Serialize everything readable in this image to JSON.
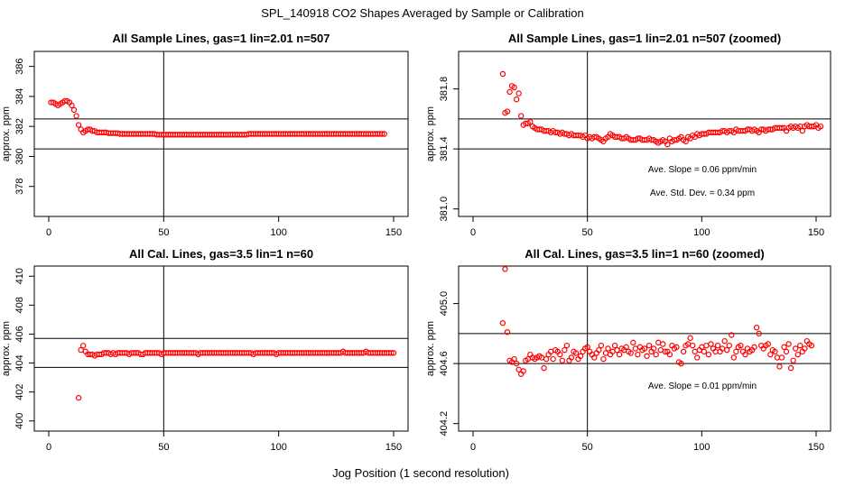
{
  "figure": {
    "title": "SPL_140918  CO2 Shapes Averaged by Sample or Calibration",
    "xlabel": "Jog Position (1 second resolution)"
  },
  "colors": {
    "points": "#ff0000",
    "lines": "#000000"
  },
  "chart_data": [
    {
      "type": "scatter",
      "title": "All Sample Lines, gas=1 lin=2.01 n=507",
      "ylabel": "approx. ppm",
      "xlim": [
        0,
        150
      ],
      "ylim": [
        376,
        387
      ],
      "xticks": [
        0,
        50,
        100,
        150
      ],
      "yticks": [
        378,
        380,
        382,
        384,
        386
      ],
      "hlines": [
        382.5,
        380.5
      ],
      "vline": 50,
      "annotations": [],
      "x_start": 1,
      "y": [
        383.6,
        383.6,
        383.5,
        383.4,
        383.5,
        383.6,
        383.7,
        383.7,
        383.6,
        383.4,
        383.1,
        382.7,
        382.1,
        381.8,
        381.6,
        381.7,
        381.8,
        381.8,
        381.7,
        381.7,
        381.6,
        381.6,
        381.6,
        381.6,
        381.6,
        381.55,
        381.55,
        381.55,
        381.55,
        381.55,
        381.5,
        381.5,
        381.5,
        381.5,
        381.5,
        381.5,
        381.5,
        381.5,
        381.5,
        381.5,
        381.5,
        381.5,
        381.5,
        381.5,
        381.5,
        381.5,
        381.45,
        381.45,
        381.45,
        381.45,
        381.45,
        381.45,
        381.45,
        381.45,
        381.45,
        381.45,
        381.45,
        381.45,
        381.45,
        381.45,
        381.45,
        381.45,
        381.45,
        381.45,
        381.45,
        381.45,
        381.45,
        381.45,
        381.45,
        381.45,
        381.45,
        381.45,
        381.45,
        381.45,
        381.45,
        381.45,
        381.45,
        381.45,
        381.45,
        381.45,
        381.45,
        381.45,
        381.45,
        381.45,
        381.45,
        381.45,
        381.5,
        381.5,
        381.5,
        381.5,
        381.5,
        381.5,
        381.5,
        381.5,
        381.5,
        381.5,
        381.5,
        381.5,
        381.5,
        381.5,
        381.5,
        381.5,
        381.5,
        381.5,
        381.5,
        381.5,
        381.5,
        381.5,
        381.5,
        381.5,
        381.5,
        381.5,
        381.5,
        381.5,
        381.5,
        381.5,
        381.5,
        381.5,
        381.5,
        381.5,
        381.5,
        381.5,
        381.5,
        381.5,
        381.5,
        381.5,
        381.5,
        381.5,
        381.5,
        381.5,
        381.5,
        381.5,
        381.5,
        381.5,
        381.5,
        381.5,
        381.5,
        381.5,
        381.5,
        381.5,
        381.5,
        381.5,
        381.5,
        381.5,
        381.5,
        381.5
      ]
    },
    {
      "type": "scatter",
      "title": "All Sample Lines, gas=1 lin=2.01 n=507 (zoomed)",
      "ylabel": "approx. ppm",
      "xlim": [
        0,
        150
      ],
      "ylim": [
        380.95,
        382.05
      ],
      "xticks": [
        0,
        50,
        100,
        150
      ],
      "yticks": [
        381.0,
        381.4,
        381.8
      ],
      "hlines": [
        381.6,
        381.4
      ],
      "vline": 50,
      "annotations": [
        "Ave. Slope =  0.06  ppm/min",
        "Ave. Std. Dev. =  0.34  ppm"
      ],
      "x_start": 13,
      "y": [
        381.9,
        381.64,
        381.65,
        381.78,
        381.82,
        381.81,
        381.73,
        381.77,
        381.62,
        381.56,
        381.57,
        381.57,
        381.58,
        381.55,
        381.54,
        381.53,
        381.53,
        381.53,
        381.52,
        381.52,
        381.52,
        381.51,
        381.52,
        381.51,
        381.51,
        381.5,
        381.51,
        381.5,
        381.5,
        381.49,
        381.5,
        381.49,
        381.49,
        381.49,
        381.49,
        381.48,
        381.49,
        381.47,
        381.48,
        381.47,
        381.48,
        381.48,
        381.47,
        381.46,
        381.45,
        381.47,
        381.48,
        381.5,
        381.49,
        381.48,
        381.48,
        381.48,
        381.47,
        381.47,
        381.48,
        381.47,
        381.46,
        381.46,
        381.46,
        381.47,
        381.47,
        381.46,
        381.46,
        381.46,
        381.47,
        381.46,
        381.46,
        381.45,
        381.44,
        381.45,
        381.46,
        381.45,
        381.43,
        381.47,
        381.45,
        381.46,
        381.46,
        381.47,
        381.48,
        381.46,
        381.45,
        381.48,
        381.47,
        381.49,
        381.48,
        381.5,
        381.49,
        381.5,
        381.5,
        381.5,
        381.51,
        381.51,
        381.51,
        381.51,
        381.51,
        381.51,
        381.52,
        381.52,
        381.51,
        381.52,
        381.52,
        381.51,
        381.53,
        381.52,
        381.52,
        381.52,
        381.52,
        381.53,
        381.53,
        381.52,
        381.53,
        381.52,
        381.51,
        381.53,
        381.53,
        381.52,
        381.53,
        381.53,
        381.53,
        381.54,
        381.54,
        381.54,
        381.54,
        381.54,
        381.52,
        381.54,
        381.55,
        381.54,
        381.55,
        381.54,
        381.55,
        381.52,
        381.55,
        381.56,
        381.55,
        381.55,
        381.55,
        381.56,
        381.54,
        381.55
      ]
    },
    {
      "type": "scatter",
      "title": "All Cal. Lines, gas=3.5 lin=1 n=60",
      "ylabel": "approx. ppm",
      "xlim": [
        0,
        150
      ],
      "ylim": [
        399.3,
        410.7
      ],
      "xticks": [
        0,
        50,
        100,
        150
      ],
      "yticks": [
        400,
        402,
        404,
        406,
        408,
        410
      ],
      "hlines": [
        405.7,
        403.7
      ],
      "vline": 50,
      "annotations": [],
      "x_start": 13,
      "y": [
        401.6,
        404.9,
        405.2,
        404.8,
        404.6,
        404.6,
        404.6,
        404.5,
        404.6,
        404.6,
        404.6,
        404.7,
        404.7,
        404.7,
        404.6,
        404.7,
        404.6,
        404.7,
        404.7,
        404.7,
        404.7,
        404.7,
        404.6,
        404.7,
        404.7,
        404.7,
        404.7,
        404.6,
        404.6,
        404.7,
        404.7,
        404.7,
        404.7,
        404.7,
        404.7,
        404.7,
        404.6,
        404.7,
        404.7,
        404.7,
        404.7,
        404.7,
        404.7,
        404.7,
        404.7,
        404.7,
        404.7,
        404.7,
        404.7,
        404.7,
        404.7,
        404.7,
        404.6,
        404.7,
        404.7,
        404.7,
        404.7,
        404.7,
        404.7,
        404.7,
        404.7,
        404.7,
        404.7,
        404.7,
        404.7,
        404.7,
        404.7,
        404.7,
        404.7,
        404.7,
        404.7,
        404.7,
        404.7,
        404.7,
        404.7,
        404.7,
        404.6,
        404.7,
        404.7,
        404.7,
        404.7,
        404.7,
        404.7,
        404.7,
        404.7,
        404.7,
        404.6,
        404.7,
        404.7,
        404.7,
        404.7,
        404.7,
        404.7,
        404.7,
        404.7,
        404.7,
        404.7,
        404.7,
        404.7,
        404.7,
        404.7,
        404.7,
        404.7,
        404.7,
        404.7,
        404.7,
        404.7,
        404.7,
        404.7,
        404.7,
        404.7,
        404.7,
        404.7,
        404.7,
        404.7,
        404.8,
        404.7,
        404.7,
        404.7,
        404.7,
        404.7,
        404.7,
        404.7,
        404.7,
        404.7,
        404.8,
        404.7,
        404.7,
        404.7,
        404.7,
        404.7,
        404.7,
        404.7,
        404.7,
        404.7,
        404.7,
        404.7,
        404.7
      ]
    },
    {
      "type": "scatter",
      "title": "All Cal. Lines, gas=3.5 lin=1 n=60 (zoomed)",
      "ylabel": "approx. ppm",
      "xlim": [
        0,
        150
      ],
      "ylim": [
        404.15,
        405.25
      ],
      "xticks": [
        0,
        50,
        100,
        150
      ],
      "yticks": [
        404.2,
        404.6,
        405.0
      ],
      "hlines": [
        404.8,
        404.6
      ],
      "vline": 50,
      "annotations": [
        "Ave. Slope =  0.01  ppm/min"
      ],
      "x_start": 13,
      "y": [
        404.87,
        405.23,
        404.81,
        404.62,
        404.61,
        404.63,
        404.6,
        404.56,
        404.53,
        404.55,
        404.62,
        404.63,
        404.66,
        404.64,
        404.63,
        404.64,
        404.65,
        404.64,
        404.57,
        404.63,
        404.66,
        404.68,
        404.63,
        404.69,
        404.68,
        404.66,
        404.62,
        404.69,
        404.72,
        404.62,
        404.64,
        404.68,
        404.67,
        404.63,
        404.65,
        404.68,
        404.7,
        404.71,
        404.68,
        404.66,
        404.64,
        404.67,
        404.69,
        404.72,
        404.63,
        404.67,
        404.7,
        404.66,
        404.68,
        404.72,
        404.69,
        404.66,
        404.7,
        404.69,
        404.71,
        404.68,
        404.67,
        404.74,
        404.7,
        404.66,
        404.71,
        404.69,
        404.7,
        404.65,
        404.72,
        404.68,
        404.7,
        404.66,
        404.74,
        404.69,
        404.73,
        404.68,
        404.68,
        404.66,
        404.72,
        404.7,
        404.71,
        404.61,
        404.6,
        404.68,
        404.72,
        404.73,
        404.77,
        404.72,
        404.68,
        404.64,
        404.69,
        404.71,
        404.68,
        404.72,
        404.66,
        404.73,
        404.7,
        404.68,
        404.72,
        404.68,
        404.7,
        404.75,
        404.69,
        404.72,
        404.79,
        404.64,
        404.68,
        404.71,
        404.72,
        404.68,
        404.66,
        404.7,
        404.68,
        404.69,
        404.71,
        404.84,
        404.8,
        404.72,
        404.7,
        404.72,
        404.73,
        404.66,
        404.69,
        404.68,
        404.64,
        404.58,
        404.64,
        404.71,
        404.68,
        404.73,
        404.57,
        404.62,
        404.7,
        404.66,
        404.72,
        404.68,
        404.7,
        404.75,
        404.73,
        404.72
      ]
    }
  ]
}
